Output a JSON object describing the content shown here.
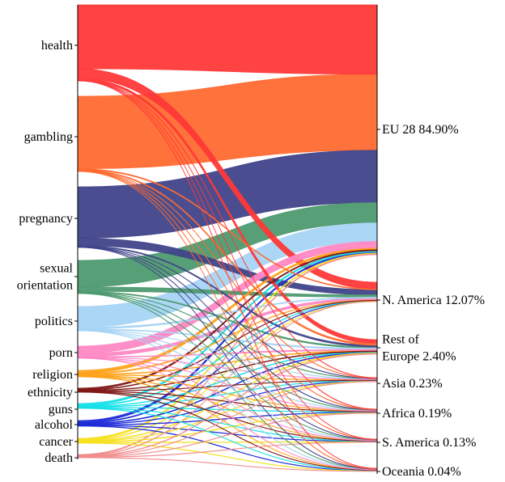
{
  "chart_data": {
    "type": "sankey",
    "sources": [
      {
        "name": "health",
        "label_lines": [
          "health"
        ],
        "color": "#ff3838"
      },
      {
        "name": "gambling",
        "label_lines": [
          "gambling"
        ],
        "color": "#ff6a30"
      },
      {
        "name": "pregnancy",
        "label_lines": [
          "pregnancy"
        ],
        "color": "#40448a"
      },
      {
        "name": "sexual orientation",
        "label_lines": [
          "sexual",
          "orientation"
        ],
        "color": "#4e9a6f"
      },
      {
        "name": "politics",
        "label_lines": [
          "politics"
        ],
        "color": "#a8d4f4"
      },
      {
        "name": "porn",
        "label_lines": [
          "porn"
        ],
        "color": "#ff88c4"
      },
      {
        "name": "religion",
        "label_lines": [
          "religion"
        ],
        "color": "#ffa21a"
      },
      {
        "name": "ethnicity",
        "label_lines": [
          "ethnicity"
        ],
        "color": "#801818"
      },
      {
        "name": "guns",
        "label_lines": [
          "guns"
        ],
        "color": "#18e0e8"
      },
      {
        "name": "alcohol",
        "label_lines": [
          "alcohol"
        ],
        "color": "#1f2cd8"
      },
      {
        "name": "cancer",
        "label_lines": [
          "cancer"
        ],
        "color": "#f5e020"
      },
      {
        "name": "death",
        "label_lines": [
          "death"
        ],
        "color": "#f08c8c"
      }
    ],
    "targets": [
      {
        "name": "EU 28",
        "label_lines": [
          "EU 28 84.90%"
        ],
        "percent": 84.9
      },
      {
        "name": "N. America",
        "label_lines": [
          "N. America 12.07%"
        ],
        "percent": 12.07
      },
      {
        "name": "Rest of Europe",
        "label_lines": [
          "Rest of",
          "Europe 2.40%"
        ],
        "percent": 2.4
      },
      {
        "name": "Asia",
        "label_lines": [
          "Asia 0.23%"
        ],
        "percent": 0.23
      },
      {
        "name": "Africa",
        "label_lines": [
          "Africa 0.19%"
        ],
        "percent": 0.19
      },
      {
        "name": "S. America",
        "label_lines": [
          "S. America 0.13%"
        ],
        "percent": 0.13
      },
      {
        "name": "Oceania",
        "label_lines": [
          "Oceania 0.04%"
        ],
        "percent": 0.04
      }
    ],
    "flows": [
      {
        "source": "health",
        "values": {
          "EU 28": 82,
          "N. America": 12,
          "Rest of Europe": 2.5,
          "Asia": 0.3,
          "Africa": 0.25,
          "S. America": 0.15,
          "Oceania": 0.3
        }
      },
      {
        "source": "gambling",
        "values": {
          "EU 28": 90,
          "N. America": 1.2,
          "Rest of Europe": 1.0,
          "Asia": 0.3,
          "Africa": 0.3,
          "S. America": 0.3,
          "Oceania": 0.3
        }
      },
      {
        "source": "pregnancy",
        "values": {
          "EU 28": 62,
          "N. America": 9,
          "Rest of Europe": 1.0,
          "Asia": 0.3,
          "Africa": 0.3,
          "S. America": 0.3,
          "Oceania": 0.3
        }
      },
      {
        "source": "sexual orientation",
        "values": {
          "EU 28": 24,
          "N. America": 4,
          "Rest of Europe": 0.8,
          "Asia": 0.3,
          "Africa": 0.3,
          "S. America": 0.3,
          "Oceania": 0.3
        }
      },
      {
        "source": "politics",
        "values": {
          "EU 28": 22,
          "N. America": 1.5,
          "Rest of Europe": 0.8,
          "Asia": 0.3,
          "Africa": 0.3,
          "S. America": 0.3,
          "Oceania": 0.3
        }
      },
      {
        "source": "porn",
        "values": {
          "EU 28": 8,
          "N. America": 3.5,
          "Rest of Europe": 0.6,
          "Asia": 0.3,
          "Africa": 0.3,
          "S. America": 0.3,
          "Oceania": 0.3
        }
      },
      {
        "source": "religion",
        "values": {
          "EU 28": 1.8,
          "N. America": 0.6,
          "Rest of Europe": 0.4,
          "Asia": 0.3,
          "Africa": 0.3,
          "S. America": 0.3,
          "Oceania": 0.3
        }
      },
      {
        "source": "ethnicity",
        "values": {
          "EU 28": 1.2,
          "N. America": 0.5,
          "Rest of Europe": 0.4,
          "Asia": 0.3,
          "Africa": 0.3,
          "S. America": 0.3,
          "Oceania": 0.3
        }
      },
      {
        "source": "guns",
        "values": {
          "EU 28": 1.5,
          "N. America": 0.6,
          "Rest of Europe": 0.4,
          "Asia": 0.3,
          "Africa": 0.3,
          "S. America": 0.3,
          "Oceania": 0.3
        }
      },
      {
        "source": "alcohol",
        "values": {
          "EU 28": 1.3,
          "N. America": 0.5,
          "Rest of Europe": 0.4,
          "Asia": 0.3,
          "Africa": 0.3,
          "S. America": 0.3,
          "Oceania": 0.3
        }
      },
      {
        "source": "cancer",
        "values": {
          "EU 28": 1.0,
          "N. America": 0.4,
          "Rest of Europe": 0.4,
          "Asia": 0.3,
          "Africa": 0.3,
          "S. America": 0.3,
          "Oceania": 0.3
        }
      },
      {
        "source": "death",
        "values": {
          "EU 28": 0.9,
          "N. America": 0.4,
          "Rest of Europe": 0.4,
          "Asia": 0.3,
          "Africa": 0.3,
          "S. America": 0.3,
          "Oceania": 0.3
        }
      }
    ]
  }
}
